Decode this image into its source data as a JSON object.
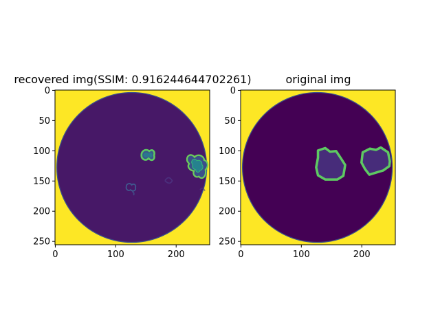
{
  "chart_data": [
    {
      "type": "heatmap",
      "title": "recovered img(SSIM: 0.916244644702261)",
      "xlabel": "",
      "ylabel": "",
      "image_size": [
        256,
        256
      ],
      "xlim": [
        0,
        256
      ],
      "ylim": [
        256,
        0
      ],
      "x_ticks": [
        0,
        100,
        200
      ],
      "y_ticks": [
        0,
        50,
        100,
        150,
        200,
        250
      ],
      "colormap": "viridis",
      "colors": {
        "background": "#fde725",
        "disc": "#471867",
        "disc_edge": "#3b528b",
        "feature": "#5ec962",
        "feature_inner": "#2a788e"
      },
      "disc": {
        "center": [
          127,
          128
        ],
        "radius": 124
      },
      "blobs": [
        {
          "cx": 152,
          "cy": 110,
          "r": 10
        },
        {
          "cx": 233,
          "cy": 125,
          "r": 17
        },
        {
          "cx": 128,
          "cy": 160,
          "r": 8
        }
      ]
    },
    {
      "type": "heatmap",
      "title": "original img",
      "xlabel": "",
      "ylabel": "",
      "image_size": [
        256,
        256
      ],
      "xlim": [
        0,
        256
      ],
      "ylim": [
        256,
        0
      ],
      "x_ticks": [
        0,
        100,
        200
      ],
      "y_ticks": [
        0,
        50,
        100,
        150,
        200,
        250
      ],
      "colormap": "viridis",
      "colors": {
        "background": "#fde725",
        "disc": "#440154",
        "disc_edge": "#3b528b",
        "feature": "#5ec962",
        "feature_inner": "#472c7a"
      },
      "disc": {
        "center": [
          127,
          128
        ],
        "radius": 124
      },
      "blobs": [
        {
          "cx": 150,
          "cy": 122,
          "r": 24
        },
        {
          "cx": 223,
          "cy": 118,
          "r": 24
        }
      ]
    }
  ]
}
